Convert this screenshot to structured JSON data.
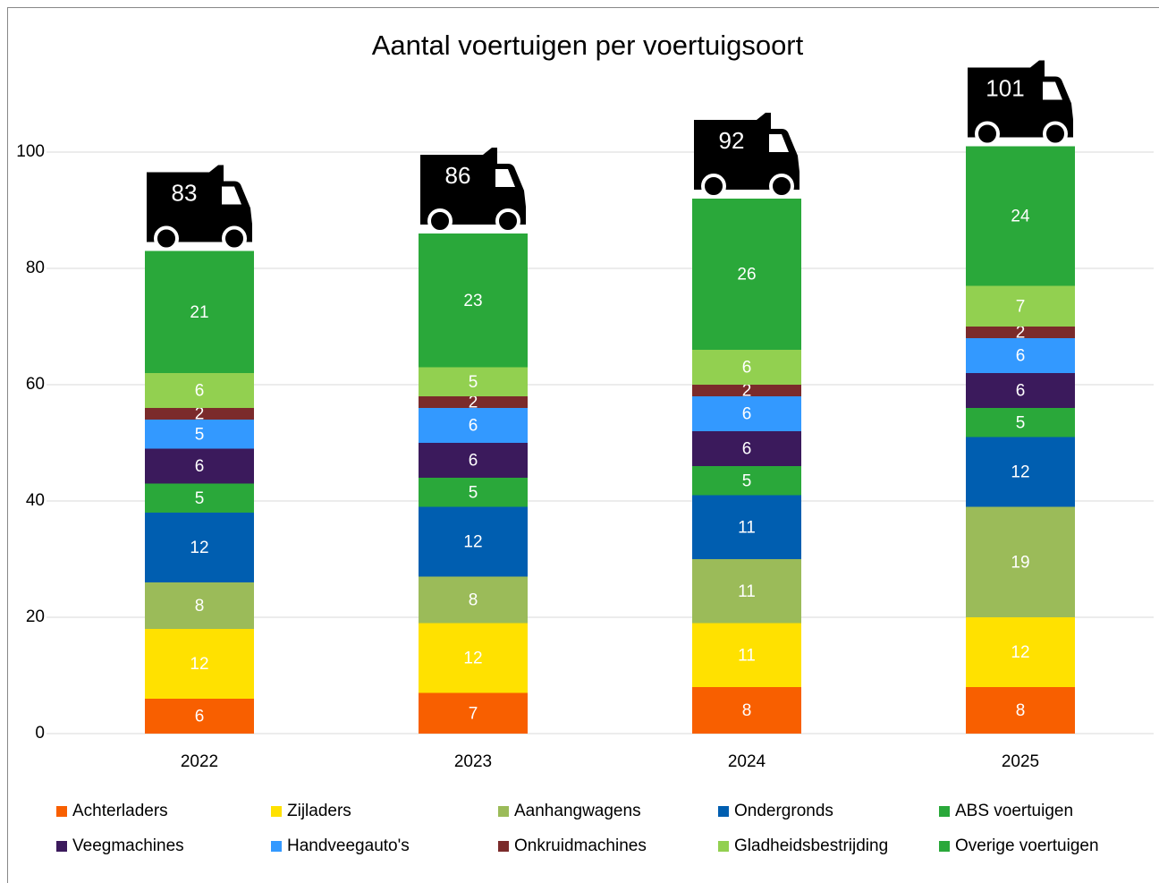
{
  "chart_data": {
    "type": "stacked_bar",
    "title": "Aantal voertuigen per voertuigsoort",
    "categories": [
      "2022",
      "2023",
      "2024",
      "2025"
    ],
    "series": [
      {
        "name": "Achterladers",
        "color": "#f85f00",
        "values": [
          6,
          7,
          8,
          8
        ]
      },
      {
        "name": "Zijladers",
        "color": "#ffe100",
        "values": [
          12,
          12,
          11,
          12
        ]
      },
      {
        "name": "Aanhangwagens",
        "color": "#9bbb59",
        "values": [
          8,
          8,
          11,
          19
        ]
      },
      {
        "name": "Ondergronds",
        "color": "#005eb0",
        "values": [
          12,
          12,
          11,
          12
        ]
      },
      {
        "name": "ABS voertuigen",
        "color": "#2aa83a",
        "values": [
          5,
          5,
          5,
          5
        ]
      },
      {
        "name": "Veegmachines",
        "color": "#3b1a5c",
        "values": [
          6,
          6,
          6,
          6
        ]
      },
      {
        "name": "Handveegauto's",
        "color": "#3399ff",
        "values": [
          5,
          6,
          6,
          6
        ]
      },
      {
        "name": "Onkruidmachines",
        "color": "#7b2b2b",
        "values": [
          2,
          2,
          2,
          2
        ]
      },
      {
        "name": "Gladheidsbestrijding",
        "color": "#92d050",
        "values": [
          6,
          5,
          6,
          7
        ]
      },
      {
        "name": "Overige voertuigen",
        "color": "#2aa83a",
        "values": [
          21,
          23,
          26,
          24
        ]
      }
    ],
    "totals": [
      83,
      86,
      92,
      101
    ],
    "ylim": [
      0,
      100
    ],
    "yticks": [
      0,
      20,
      40,
      60,
      80,
      100
    ],
    "grid": true,
    "legend": "bottom"
  }
}
